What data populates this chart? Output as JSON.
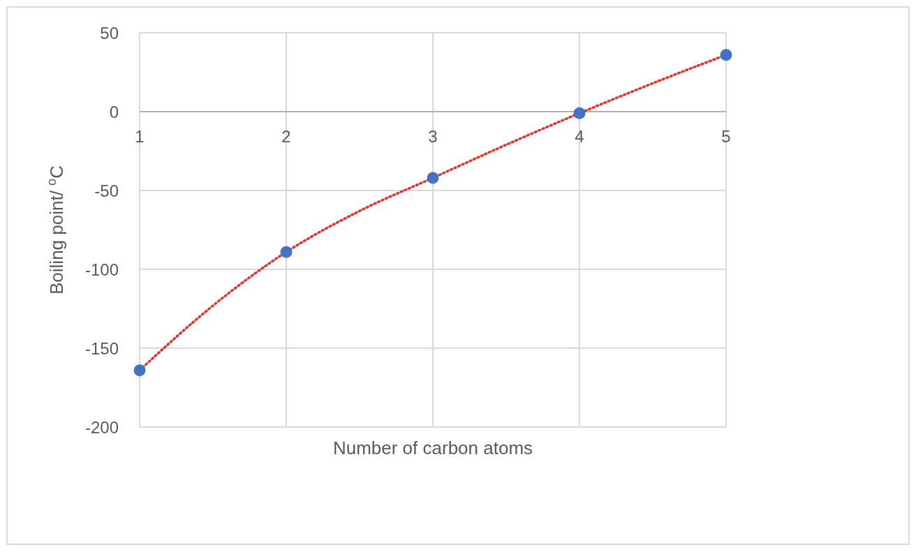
{
  "chart_data": {
    "type": "scatter",
    "xlabel": "Number of carbon atoms",
    "ylabel": "Boiling point/ $^{o}$C",
    "x": [
      1,
      2,
      3,
      4,
      5
    ],
    "series": [
      {
        "color": "#4472c4",
        "values": [
          -164,
          -89,
          -42,
          -1,
          36
        ],
        "marker": "circle"
      },
      {
        "type": "line",
        "color": "#e8312a",
        "x": [
          1,
          1.5,
          2,
          2.5,
          3,
          3.5,
          4,
          4.5,
          5
        ],
        "values": [
          -164,
          -123,
          -89,
          -63,
          -42,
          -21,
          -1,
          18,
          36
        ],
        "line_style": "dotted"
      }
    ],
    "xlim": [
      1,
      5
    ],
    "xticks": [
      1,
      2,
      3,
      4,
      5
    ],
    "ylim": [
      -200,
      50
    ],
    "yticks": [
      -200,
      -150,
      -100,
      -50,
      0,
      50
    ],
    "grid": true
  }
}
